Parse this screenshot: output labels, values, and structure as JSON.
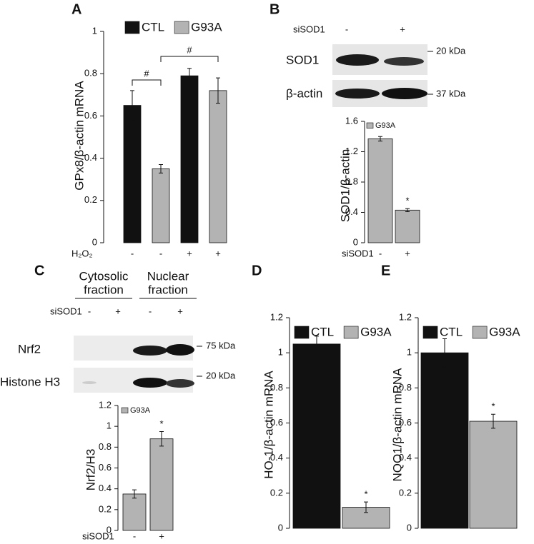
{
  "chart_data": [
    {
      "type": "bar",
      "label": "A",
      "y_label": "GPx8/β-actin mRNA",
      "x_label": "H₂O₂",
      "categories": [
        "-",
        "+"
      ],
      "series": [
        {
          "name": "CTL",
          "color": "#111111",
          "values": [
            0.65,
            0.79
          ],
          "errors": [
            0.07,
            0.035
          ]
        },
        {
          "name": "G93A",
          "color": "#b3b3b3",
          "values": [
            0.35,
            0.72
          ],
          "errors": [
            0.02,
            0.06
          ]
        }
      ],
      "ylim": [
        0,
        1
      ],
      "yticks": [
        0,
        0.2,
        0.4,
        0.6,
        0.8,
        1
      ],
      "annotations": [
        "#",
        "#"
      ]
    },
    {
      "type": "bar",
      "label": "B",
      "y_label": "SOD1/β-actin",
      "x_label": "siSOD1",
      "categories": [
        "-",
        "+"
      ],
      "series": [
        {
          "name": "G93A",
          "color": "#b3b3b3",
          "values": [
            1.37,
            0.43
          ],
          "errors": [
            0.03,
            0.02
          ]
        }
      ],
      "ylim": [
        0,
        1.6
      ],
      "yticks": [
        0,
        0.4,
        0.8,
        1.2,
        1.6
      ],
      "annotations": [
        "*"
      ]
    },
    {
      "type": "bar",
      "label": "C",
      "y_label": "Nrf2/H3",
      "x_label": "siSOD1",
      "categories": [
        "-",
        "+"
      ],
      "series": [
        {
          "name": "G93A",
          "color": "#b3b3b3",
          "values": [
            0.35,
            0.88
          ],
          "errors": [
            0.04,
            0.07
          ]
        }
      ],
      "ylim": [
        0,
        1.2
      ],
      "yticks": [
        0,
        0.2,
        0.4,
        0.6,
        0.8,
        1,
        1.2
      ],
      "annotations": [
        "*"
      ]
    },
    {
      "type": "bar",
      "label": "D",
      "y_label": "HO-1/β-actin mRNA",
      "categories": [
        null
      ],
      "series": [
        {
          "name": "CTL",
          "color": "#111111",
          "values": [
            1.05
          ],
          "errors": [
            0.045
          ]
        },
        {
          "name": "G93A",
          "color": "#b3b3b3",
          "values": [
            0.12
          ],
          "errors": [
            0.03
          ]
        }
      ],
      "ylim": [
        0,
        1.2
      ],
      "yticks": [
        0,
        0.2,
        0.4,
        0.6,
        0.8,
        1,
        1.2
      ],
      "annotations": [
        "*"
      ]
    },
    {
      "type": "bar",
      "label": "E",
      "y_label": "NQO1/β-actin mRNA",
      "categories": [
        null
      ],
      "series": [
        {
          "name": "CTL",
          "color": "#111111",
          "values": [
            1.0
          ],
          "errors": [
            0.08
          ]
        },
        {
          "name": "G93A",
          "color": "#b3b3b3",
          "values": [
            0.61
          ],
          "errors": [
            0.04
          ]
        }
      ],
      "ylim": [
        0,
        1.2
      ],
      "yticks": [
        0,
        0.2,
        0.4,
        0.6,
        0.8,
        1,
        1.2
      ],
      "annotations": [
        "*"
      ]
    }
  ],
  "blots": [
    {
      "header": "siSOD1",
      "lanes": [
        "-",
        "+"
      ],
      "rows": [
        {
          "label": "SOD1",
          "marker": "20 kDa"
        },
        {
          "label": "β-actin",
          "marker": "37 kDa"
        }
      ]
    },
    {
      "groups": [
        [
          "Cytosolic",
          "fraction"
        ],
        [
          "Nuclear",
          "fraction"
        ]
      ],
      "header": "siSOD1",
      "lanes": [
        "-",
        "+",
        "-",
        "+"
      ],
      "rows": [
        {
          "label": "Nrf2",
          "marker": "75 kDa"
        },
        {
          "label": "Histone H3",
          "marker": "20 kDa"
        }
      ]
    }
  ]
}
